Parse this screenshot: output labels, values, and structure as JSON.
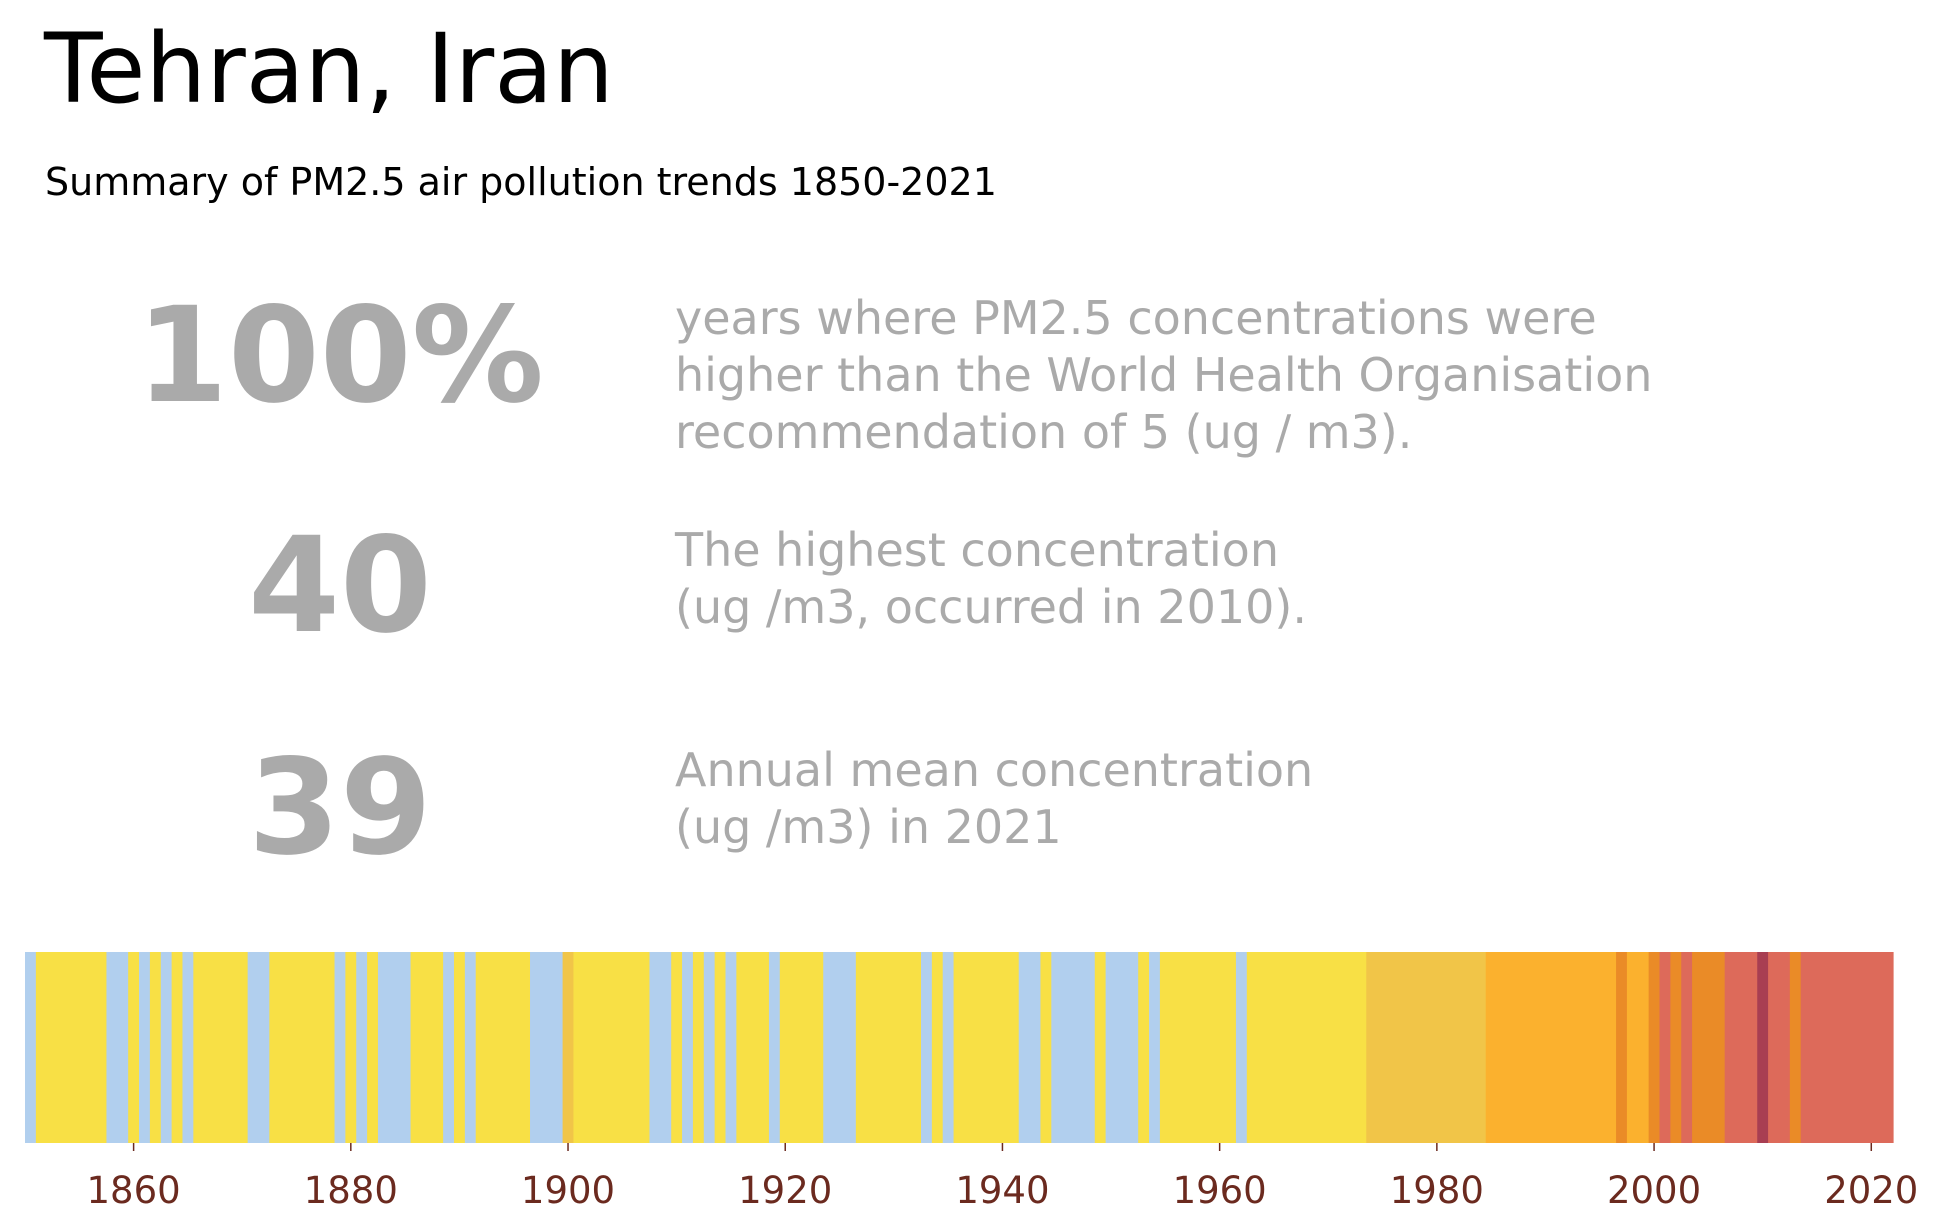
{
  "title": "Tehran, Iran",
  "subtitle": "Summary of PM2.5 air pollution trends 1850-2021",
  "stats": [
    {
      "value": "100%",
      "lines": [
        "years where PM2.5 concentrations were",
        "higher than the World Health Organisation",
        "recommendation of 5 (ug / m3)."
      ]
    },
    {
      "value": "40",
      "lines": [
        "The highest concentration",
        "(ug /m3, occurred in 2010)."
      ]
    },
    {
      "value": "39",
      "lines": [
        "Annual mean concentration",
        "(ug /m3) in 2021"
      ]
    }
  ],
  "colors": {
    "stat_text": "#aaaaaa",
    "tick_label": "#6b2a1f",
    "blue": "#b1cfee",
    "yellow": "#f8e045",
    "lightorange": "#f1c548",
    "orange": "#fbb12e",
    "darkorange": "#ea8b27",
    "red": "#dd6a5a",
    "crimson": "#a83e52"
  },
  "chart_data": {
    "type": "heatmap",
    "title": "",
    "xlabel": "",
    "ylabel": "",
    "x_ticks": [
      1860,
      1880,
      1900,
      1920,
      1940,
      1960,
      1980,
      2000,
      2020
    ],
    "xlim": [
      1850,
      2022
    ],
    "segments": [
      {
        "start": 1850,
        "end": 1851,
        "color": "#b1cfee"
      },
      {
        "start": 1851,
        "end": 1857.5,
        "color": "#f8e045"
      },
      {
        "start": 1857.5,
        "end": 1859.5,
        "color": "#b1cfee"
      },
      {
        "start": 1859.5,
        "end": 1860.5,
        "color": "#f8e045"
      },
      {
        "start": 1860.5,
        "end": 1861.5,
        "color": "#b1cfee"
      },
      {
        "start": 1861.5,
        "end": 1862.5,
        "color": "#f8e045"
      },
      {
        "start": 1862.5,
        "end": 1863.5,
        "color": "#b1cfee"
      },
      {
        "start": 1863.5,
        "end": 1864.5,
        "color": "#f8e045"
      },
      {
        "start": 1864.5,
        "end": 1865.5,
        "color": "#b1cfee"
      },
      {
        "start": 1865.5,
        "end": 1870.5,
        "color": "#f8e045"
      },
      {
        "start": 1870.5,
        "end": 1872.5,
        "color": "#b1cfee"
      },
      {
        "start": 1872.5,
        "end": 1878.5,
        "color": "#f8e045"
      },
      {
        "start": 1878.5,
        "end": 1879.5,
        "color": "#b1cfee"
      },
      {
        "start": 1879.5,
        "end": 1880.5,
        "color": "#f8e045"
      },
      {
        "start": 1880.5,
        "end": 1881.5,
        "color": "#b1cfee"
      },
      {
        "start": 1881.5,
        "end": 1882.5,
        "color": "#f8e045"
      },
      {
        "start": 1882.5,
        "end": 1885.5,
        "color": "#b1cfee"
      },
      {
        "start": 1885.5,
        "end": 1888.5,
        "color": "#f8e045"
      },
      {
        "start": 1888.5,
        "end": 1889.5,
        "color": "#b1cfee"
      },
      {
        "start": 1889.5,
        "end": 1890.5,
        "color": "#f8e045"
      },
      {
        "start": 1890.5,
        "end": 1891.5,
        "color": "#b1cfee"
      },
      {
        "start": 1891.5,
        "end": 1896.5,
        "color": "#f8e045"
      },
      {
        "start": 1896.5,
        "end": 1899.5,
        "color": "#b1cfee"
      },
      {
        "start": 1899.5,
        "end": 1900.5,
        "color": "#f1c548"
      },
      {
        "start": 1900.5,
        "end": 1907.5,
        "color": "#f8e045"
      },
      {
        "start": 1907.5,
        "end": 1909.5,
        "color": "#b1cfee"
      },
      {
        "start": 1909.5,
        "end": 1910.5,
        "color": "#f8e045"
      },
      {
        "start": 1910.5,
        "end": 1911.5,
        "color": "#b1cfee"
      },
      {
        "start": 1911.5,
        "end": 1912.5,
        "color": "#f8e045"
      },
      {
        "start": 1912.5,
        "end": 1913.5,
        "color": "#b1cfee"
      },
      {
        "start": 1913.5,
        "end": 1914.5,
        "color": "#f8e045"
      },
      {
        "start": 1914.5,
        "end": 1915.5,
        "color": "#b1cfee"
      },
      {
        "start": 1915.5,
        "end": 1918.5,
        "color": "#f8e045"
      },
      {
        "start": 1918.5,
        "end": 1919.5,
        "color": "#b1cfee"
      },
      {
        "start": 1919.5,
        "end": 1923.5,
        "color": "#f8e045"
      },
      {
        "start": 1923.5,
        "end": 1926.5,
        "color": "#b1cfee"
      },
      {
        "start": 1926.5,
        "end": 1932.5,
        "color": "#f8e045"
      },
      {
        "start": 1932.5,
        "end": 1933.5,
        "color": "#b1cfee"
      },
      {
        "start": 1933.5,
        "end": 1934.5,
        "color": "#f8e045"
      },
      {
        "start": 1934.5,
        "end": 1935.5,
        "color": "#b1cfee"
      },
      {
        "start": 1935.5,
        "end": 1941.5,
        "color": "#f8e045"
      },
      {
        "start": 1941.5,
        "end": 1943.5,
        "color": "#b1cfee"
      },
      {
        "start": 1943.5,
        "end": 1944.5,
        "color": "#f8e045"
      },
      {
        "start": 1944.5,
        "end": 1948.5,
        "color": "#b1cfee"
      },
      {
        "start": 1948.5,
        "end": 1949.5,
        "color": "#f8e045"
      },
      {
        "start": 1949.5,
        "end": 1952.5,
        "color": "#b1cfee"
      },
      {
        "start": 1952.5,
        "end": 1953.5,
        "color": "#f8e045"
      },
      {
        "start": 1953.5,
        "end": 1954.5,
        "color": "#b1cfee"
      },
      {
        "start": 1954.5,
        "end": 1961.5,
        "color": "#f8e045"
      },
      {
        "start": 1961.5,
        "end": 1962.5,
        "color": "#b1cfee"
      },
      {
        "start": 1962.5,
        "end": 1973.5,
        "color": "#f8e045"
      },
      {
        "start": 1973.5,
        "end": 1984.5,
        "color": "#f1c548"
      },
      {
        "start": 1984.5,
        "end": 1996.5,
        "color": "#fbb12e"
      },
      {
        "start": 1996.5,
        "end": 1997.5,
        "color": "#ea8b27"
      },
      {
        "start": 1997.5,
        "end": 1999.5,
        "color": "#fbb12e"
      },
      {
        "start": 1999.5,
        "end": 2000.5,
        "color": "#ea8b27"
      },
      {
        "start": 2000.5,
        "end": 2001.5,
        "color": "#dd6a5a"
      },
      {
        "start": 2001.5,
        "end": 2002.5,
        "color": "#ea8b27"
      },
      {
        "start": 2002.5,
        "end": 2003.5,
        "color": "#dd6a5a"
      },
      {
        "start": 2003.5,
        "end": 2006.5,
        "color": "#ea8b27"
      },
      {
        "start": 2006.5,
        "end": 2009.5,
        "color": "#dd6a5a"
      },
      {
        "start": 2009.5,
        "end": 2010.5,
        "color": "#a83e52"
      },
      {
        "start": 2010.5,
        "end": 2012.5,
        "color": "#dd6a5a"
      },
      {
        "start": 2012.5,
        "end": 2013.5,
        "color": "#ea8b27"
      },
      {
        "start": 2013.5,
        "end": 2022,
        "color": "#dd6a5a"
      }
    ]
  }
}
